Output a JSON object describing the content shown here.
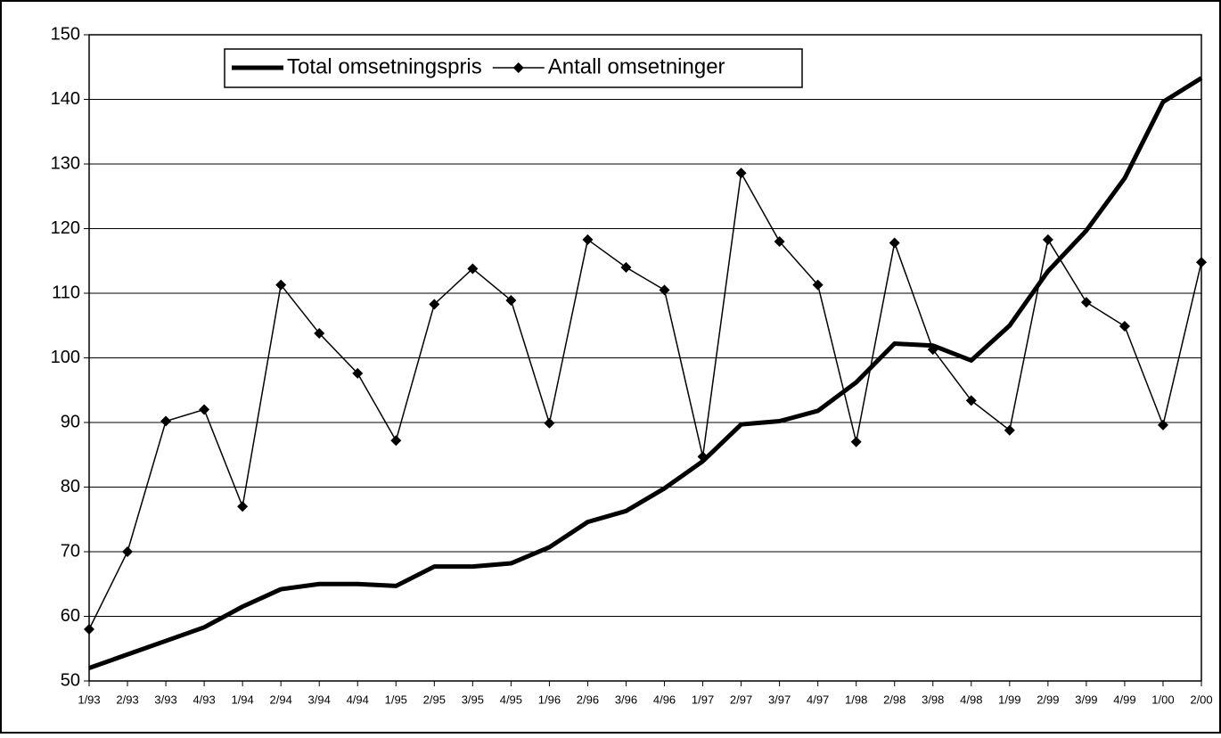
{
  "chart_data": {
    "type": "line",
    "categories": [
      "1/93",
      "2/93",
      "3/93",
      "4/93",
      "1/94",
      "2/94",
      "3/94",
      "4/94",
      "1/95",
      "2/95",
      "3/95",
      "4/95",
      "1/96",
      "2/96",
      "3/96",
      "4/96",
      "1/97",
      "2/97",
      "3/97",
      "4/97",
      "1/98",
      "2/98",
      "3/98",
      "4/98",
      "1/99",
      "2/99",
      "3/99",
      "4/99",
      "1/00",
      "2/00"
    ],
    "series": [
      {
        "name": "Total omsetningspris",
        "color": "#000000",
        "marker": false,
        "values": [
          52,
          54.1,
          56.2,
          58.3,
          61.5,
          64.2,
          65,
          65,
          64.7,
          67.7,
          67.7,
          68.2,
          70.7,
          74.6,
          76.3,
          79.8,
          84,
          89.7,
          90.2,
          91.8,
          96.2,
          102.2,
          101.9,
          99.6,
          105,
          113.4,
          119.7,
          127.8,
          139.6,
          143.3
        ]
      },
      {
        "name": "Antall omsetninger",
        "color": "#000000",
        "marker": true,
        "values": [
          58,
          70,
          90.2,
          92,
          77,
          111.3,
          103.8,
          97.6,
          87.2,
          108.3,
          113.8,
          108.9,
          89.9,
          118.3,
          114,
          110.5,
          84.7,
          128.6,
          118,
          111.3,
          87,
          117.8,
          101.3,
          93.4,
          88.8,
          118.3,
          108.6,
          104.9,
          89.6,
          114.8
        ]
      }
    ],
    "ylim": [
      50,
      150
    ],
    "yticks": [
      50,
      60,
      70,
      80,
      90,
      100,
      110,
      120,
      130,
      140,
      150
    ],
    "grid": true,
    "legend": "top"
  }
}
